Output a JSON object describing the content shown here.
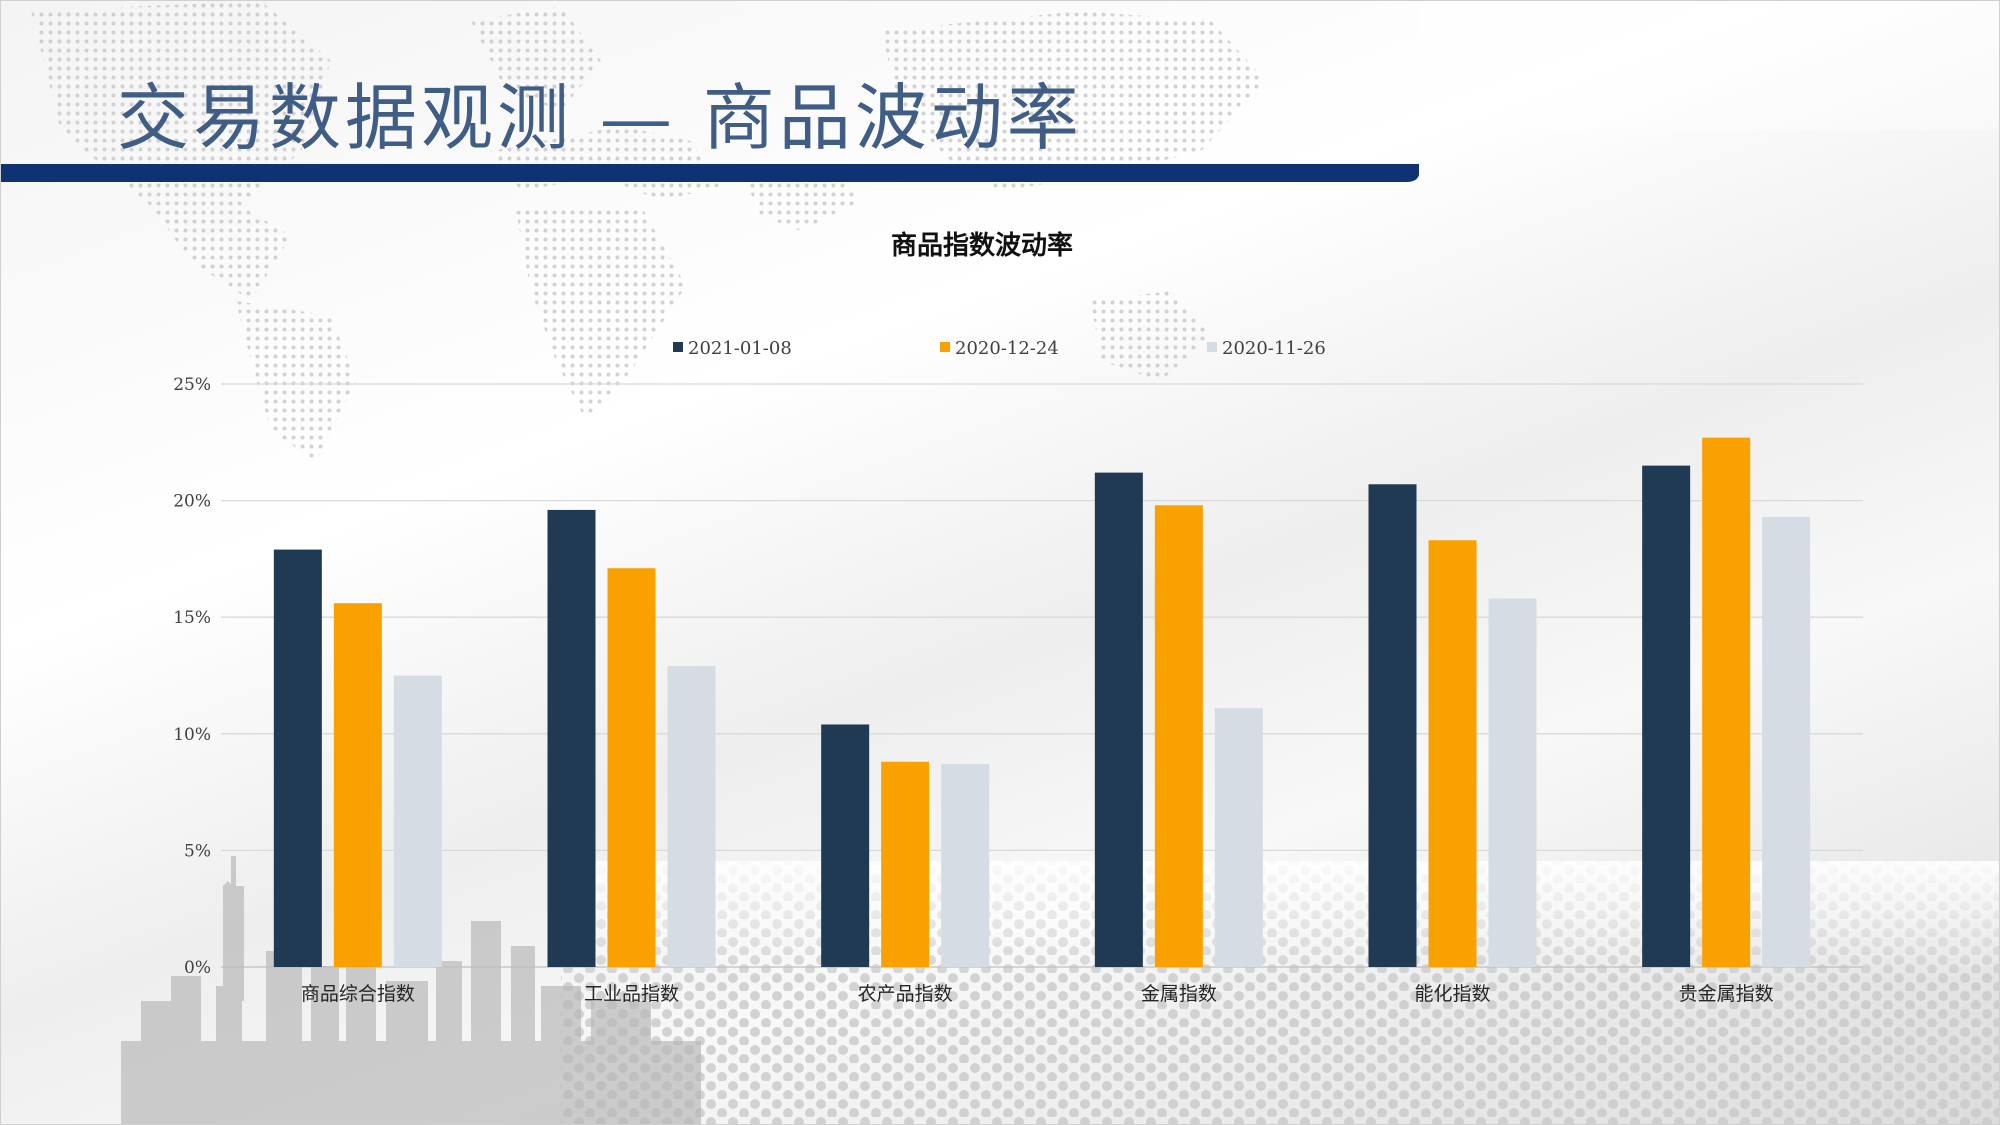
{
  "page": {
    "title": "交易数据观测 — 商品波动率"
  },
  "colors": {
    "title_text": "#3f5d85",
    "header_bar": "#0f3272",
    "series": [
      "#203a54",
      "#f9a100",
      "#d6dce4"
    ]
  },
  "chart_data": {
    "type": "bar",
    "title": "商品指数波动率",
    "xlabel": "",
    "ylabel": "",
    "categories": [
      "商品综合指数",
      "工业品指数",
      "农产品指数",
      "金属指数",
      "能化指数",
      "贵金属指数"
    ],
    "series": [
      {
        "name": "2021-01-08",
        "values": [
          17.9,
          19.6,
          10.4,
          21.2,
          20.7,
          21.5
        ]
      },
      {
        "name": "2020-12-24",
        "values": [
          15.6,
          17.1,
          8.8,
          19.8,
          18.3,
          22.7
        ]
      },
      {
        "name": "2020-11-26",
        "values": [
          12.5,
          12.9,
          8.7,
          11.1,
          15.8,
          19.3
        ]
      }
    ],
    "ylim": [
      0,
      25
    ],
    "yticks": [
      0,
      5,
      10,
      15,
      20,
      25
    ],
    "ytick_labels": [
      "0%",
      "5%",
      "10%",
      "15%",
      "20%",
      "25%"
    ],
    "legend_position": "top-center",
    "grid": true
  }
}
